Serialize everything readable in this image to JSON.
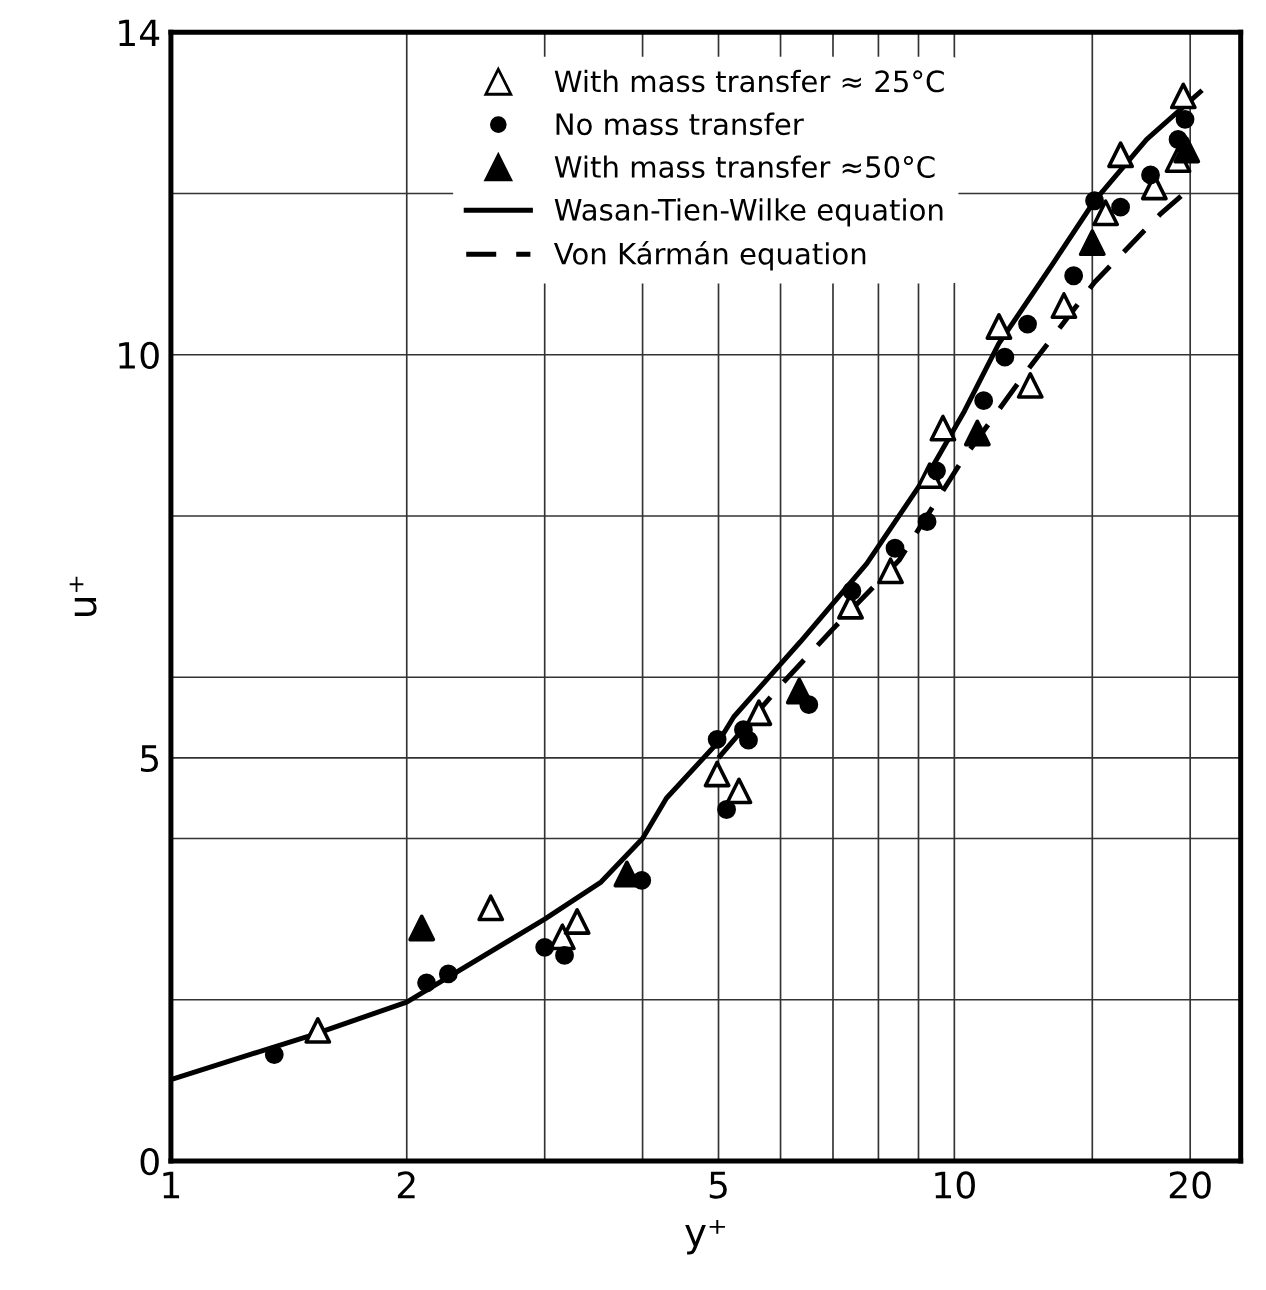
{
  "chart_data": {
    "type": "scatter",
    "xlabel": "y⁺",
    "ylabel": "u⁺",
    "log": "x",
    "xlim": [
      1,
      23.2
    ],
    "ylim": [
      0,
      14
    ],
    "xticks": [
      1,
      2,
      {
        "value": 3,
        "label": null
      },
      {
        "value": 4,
        "label": null
      },
      5,
      {
        "value": 6,
        "label": null
      },
      {
        "value": 7,
        "label": null
      },
      {
        "value": 8,
        "label": null
      },
      {
        "value": 9,
        "label": null
      },
      10,
      {
        "value": 15,
        "label": null
      },
      20
    ],
    "yticks": [
      0,
      {
        "value": 2,
        "label": null
      },
      {
        "value": 4,
        "label": null
      },
      5,
      {
        "value": 6,
        "label": null
      },
      {
        "value": 8,
        "label": null
      },
      10,
      {
        "value": 12,
        "label": null
      },
      14
    ],
    "grid": true,
    "legend": "top",
    "series": [
      {
        "name": "With mass transfer ≈ 25°C",
        "marker": "triangle",
        "color": "#ffffff",
        "x": [
          1.54,
          2.56,
          3.16,
          3.3,
          4.98,
          5.31,
          5.63,
          7.37,
          8.29,
          9.3,
          9.67,
          11.4,
          12.5,
          13.8,
          15.6,
          16.3,
          18.0,
          19.3,
          19.6
        ],
        "values": [
          1.62,
          3.14,
          2.78,
          2.97,
          4.8,
          4.59,
          5.56,
          6.88,
          7.32,
          8.5,
          9.09,
          10.35,
          9.62,
          10.61,
          11.76,
          12.48,
          12.08,
          12.42,
          13.21
        ]
      },
      {
        "name": "No mass transfer",
        "marker": "circle",
        "color": "#000000",
        "x": [
          1.355,
          2.12,
          2.26,
          3.0,
          3.18,
          3.99,
          4.98,
          5.38,
          5.46,
          5.12,
          6.52,
          7.4,
          8.4,
          9.23,
          9.49,
          10.9,
          11.6,
          12.4,
          14.2,
          15.1,
          16.3,
          17.8,
          19.3,
          19.7
        ],
        "values": [
          1.32,
          2.21,
          2.32,
          2.65,
          2.55,
          3.48,
          5.23,
          5.35,
          5.22,
          4.36,
          5.66,
          7.07,
          7.6,
          7.93,
          8.56,
          9.43,
          9.97,
          10.38,
          10.98,
          11.91,
          11.83,
          12.23,
          12.67,
          12.92
        ]
      },
      {
        "name": "With mass transfer ≈50°C",
        "marker": "triangle",
        "color": "#000000",
        "x": [
          2.09,
          3.82,
          6.34,
          10.7,
          15.0,
          19.8
        ],
        "values": [
          2.89,
          3.56,
          5.83,
          9.03,
          11.39,
          12.54
        ]
      },
      {
        "name": "Wasan-Tien-Wilke equation",
        "type": "line",
        "marker": "none",
        "line_style": "solid",
        "color": "#000000",
        "x": [
          1,
          1.5,
          2,
          3,
          3.54,
          4,
          4.29,
          5,
          5.23,
          6.36,
          7.73,
          9.4,
          10.3,
          11.4,
          13.4,
          15.1,
          17.6,
          20.6
        ],
        "values": [
          1.01,
          1.55,
          1.97,
          3.0,
          3.46,
          4.0,
          4.5,
          5.2,
          5.51,
          6.44,
          7.41,
          8.63,
          9.3,
          10.14,
          11.15,
          11.91,
          12.67,
          13.26
        ]
      },
      {
        "name": "Von Kármán equation",
        "type": "line",
        "marker": "none",
        "line_style": "dashed",
        "color": "#000000",
        "x": [
          5,
          6,
          7,
          8.5,
          10.2,
          12.4,
          15.1,
          18.3,
          20.3
        ],
        "values": [
          5.0,
          5.9,
          6.6,
          7.45,
          8.67,
          9.81,
          10.9,
          11.74,
          12.12
        ]
      }
    ]
  }
}
